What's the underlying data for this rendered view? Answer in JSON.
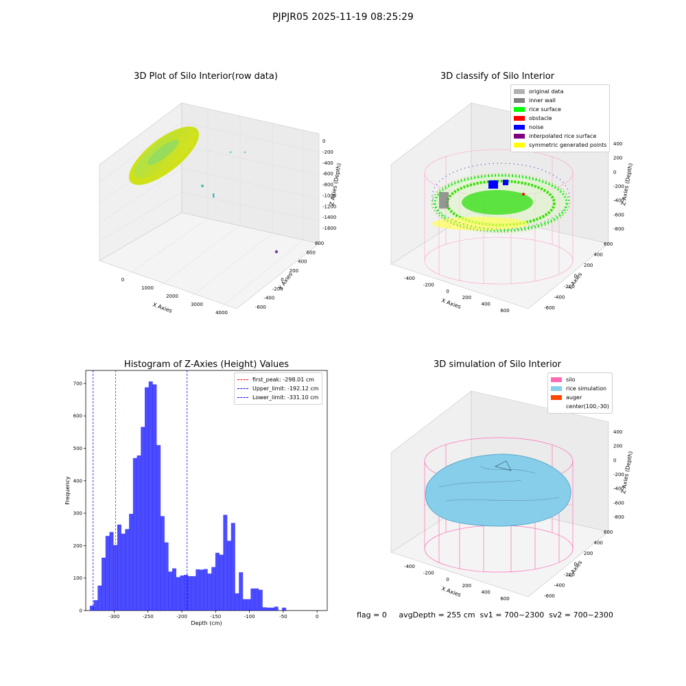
{
  "suptitle": "PJPJR05 2025-11-19 08:25:29",
  "footer": "flag = 0     avgDepth = 255 cm  sv1 = 700~2300  sv2 = 700~2300",
  "panels": {
    "raw": {
      "title": "3D Plot of Silo Interior(row data)",
      "xlabel": "X Axies",
      "ylabel": "Y Axies",
      "zlabel": "Z Axies (Depth)",
      "xticks": [
        "0",
        "1000",
        "2000",
        "3000",
        "4000"
      ],
      "yticks": [
        "-600",
        "-400",
        "-200",
        "0",
        "200",
        "400",
        "600",
        "800"
      ],
      "zticks": [
        "0",
        "-200",
        "-400",
        "-600",
        "-800",
        "-1000",
        "-1200",
        "-1400",
        "-1600"
      ]
    },
    "classify": {
      "title": "3D classify of Silo Interior",
      "xlabel": "X Axies",
      "ylabel": "Y Axies",
      "zlabel": "Z Axies (Depth)",
      "xticks": [
        "-400",
        "-200",
        "0",
        "200",
        "400",
        "600"
      ],
      "yticks": [
        "-600",
        "-400",
        "-200",
        "0",
        "200",
        "400",
        "600"
      ],
      "zticks": [
        "400",
        "200",
        "0",
        "-200",
        "-400",
        "-600",
        "-800"
      ],
      "legend": [
        {
          "label": "original data",
          "color": "#b0b0b0"
        },
        {
          "label": "inner wall",
          "color": "#808080"
        },
        {
          "label": "rice surface",
          "color": "#00ff00"
        },
        {
          "label": "obstacle",
          "color": "#ff0000"
        },
        {
          "label": "noise",
          "color": "#0000ff"
        },
        {
          "label": "interpolated rice surface",
          "color": "#800080"
        },
        {
          "label": "symmetric generated points",
          "color": "#ffff00"
        }
      ]
    },
    "simulation": {
      "title": "3D simulation of Silo Interior",
      "xlabel": "X Axies",
      "ylabel": "Y Axies",
      "zlabel": "Z Axies (Depth)",
      "xticks": [
        "-400",
        "-200",
        "0",
        "200",
        "400",
        "600"
      ],
      "yticks": [
        "-600",
        "-400",
        "-200",
        "0",
        "200",
        "400",
        "600"
      ],
      "zticks": [
        "400",
        "200",
        "0",
        "-200",
        "-400",
        "-600",
        "-800"
      ],
      "legend": [
        {
          "label": "silo",
          "color": "#ff69b4"
        },
        {
          "label": "rice simulation",
          "color": "#87ceeb"
        },
        {
          "label": "auger",
          "color": "#ff4500"
        },
        {
          "label": "center(100,-30)",
          "color": ""
        }
      ]
    }
  },
  "chart_data": {
    "type": "bar",
    "title": "Histogram of Z-Axies (Height) Values",
    "xlabel": "Depth (cm)",
    "ylabel": "Frequency",
    "xlim": [
      -342,
      15
    ],
    "ylim": [
      0,
      740
    ],
    "xticks": [
      -300,
      -250,
      -200,
      -150,
      -100,
      -50,
      0
    ],
    "yticks": [
      0,
      100,
      200,
      300,
      400,
      500,
      600,
      700
    ],
    "bin_start": -336,
    "bin_width": 5.8,
    "values": [
      15,
      32,
      77,
      163,
      230,
      242,
      202,
      265,
      237,
      251,
      298,
      470,
      478,
      566,
      688,
      706,
      697,
      510,
      291,
      210,
      120,
      130,
      103,
      108,
      110,
      106,
      106,
      127,
      126,
      128,
      114,
      134,
      178,
      172,
      295,
      215,
      270,
      53,
      118,
      35,
      35,
      68,
      68,
      64,
      10,
      9,
      9,
      12,
      0,
      9
    ],
    "color": "#0000ff",
    "lines": [
      {
        "label": "first_peak: -298.01 cm",
        "x": -298.01,
        "color": "#ff0000"
      },
      {
        "label": "Upper_limit: -192.12 cm",
        "x": -192.12,
        "color": "#0000ff"
      },
      {
        "label": "Lower_limit: -331.10 cm",
        "x": -331.1,
        "color": "#0000ff"
      }
    ]
  }
}
